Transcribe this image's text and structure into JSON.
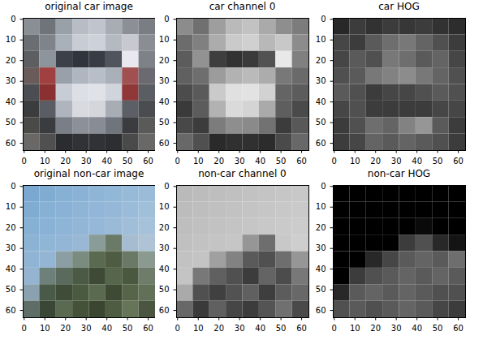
{
  "chart_data": [
    {
      "type": "image",
      "title": "original car image",
      "xlim": [
        -0.5,
        63.5
      ],
      "ylim": [
        63.5,
        -0.5
      ],
      "xticks": [
        0,
        10,
        20,
        30,
        40,
        50,
        60
      ],
      "yticks": [
        0,
        10,
        20,
        30,
        40,
        50,
        60
      ],
      "cells": [
        [
          "#8a8f95",
          "#6e747a",
          "#9aa0a8",
          "#b8bcc4",
          "#c0c4cc",
          "#a8adb5",
          "#8c9096",
          "#7a7e84"
        ],
        [
          "#6a6e72",
          "#7e848a",
          "#a9b0ba",
          "#c8ccd4",
          "#cdd2da",
          "#b5bac2",
          "#c8c8d0",
          "#8a8e94"
        ],
        [
          "#5c5e62",
          "#8e949c",
          "#3c4048",
          "#30343c",
          "#383c44",
          "#50545c",
          "#e8e8ee",
          "#7e8288"
        ],
        [
          "#6a5a5a",
          "#a04040",
          "#9aa0aa",
          "#b0b6c0",
          "#b8bec8",
          "#aab0ba",
          "#a05050",
          "#6a6a70"
        ],
        [
          "#4a4e52",
          "#8a3030",
          "#c8ccd4",
          "#dcdfe6",
          "#e0e2e8",
          "#d0d4dc",
          "#903838",
          "#5a5e62"
        ],
        [
          "#3a3c3e",
          "#5a5e64",
          "#b0b4bc",
          "#d8dae0",
          "#d4d6dc",
          "#a8acb4",
          "#5c6066",
          "#4a4c50"
        ],
        [
          "#4a4a48",
          "#3a3c40",
          "#7a7e86",
          "#8c9098",
          "#888c94",
          "#70747c",
          "#3a3c40",
          "#5a5a58"
        ],
        [
          "#6a6866",
          "#505050",
          "#2a2c30",
          "#303236",
          "#303236",
          "#2c2e32",
          "#4a4a4a",
          "#6a6866"
        ]
      ]
    },
    {
      "type": "image",
      "title": "car channel 0",
      "xlim": [
        -0.5,
        63.5
      ],
      "ylim": [
        63.5,
        -0.5
      ],
      "xticks": [
        0,
        10,
        20,
        30,
        40,
        50,
        60
      ],
      "yticks": [
        0,
        10,
        20,
        30,
        40,
        50,
        60
      ],
      "cells": [
        [
          140,
          112,
          158,
          186,
          194,
          170,
          142,
          124
        ],
        [
          108,
          128,
          172,
          202,
          208,
          184,
          200,
          140
        ],
        [
          92,
          146,
          62,
          50,
          58,
          82,
          232,
          128
        ],
        [
          96,
          110,
          156,
          178,
          186,
          172,
          120,
          106
        ],
        [
          76,
          90,
          202,
          224,
          226,
          210,
          100,
          92
        ],
        [
          58,
          92,
          178,
          218,
          212,
          170,
          94,
          74
        ],
        [
          72,
          60,
          124,
          142,
          138,
          114,
          60,
          88
        ],
        [
          104,
          80,
          42,
          48,
          48,
          44,
          74,
          104
        ]
      ]
    },
    {
      "type": "image",
      "title": "car HOG",
      "xlim": [
        -0.5,
        63.5
      ],
      "ylim": [
        63.5,
        -0.5
      ],
      "xticks": [
        0,
        10,
        20,
        30,
        40,
        50,
        60
      ],
      "yticks": [
        0,
        10,
        20,
        30,
        40,
        50,
        60
      ],
      "cells": [
        [
          40,
          60,
          50,
          60,
          55,
          60,
          50,
          45
        ],
        [
          70,
          60,
          90,
          110,
          120,
          100,
          80,
          60
        ],
        [
          70,
          90,
          80,
          120,
          110,
          90,
          100,
          70
        ],
        [
          80,
          90,
          120,
          130,
          140,
          120,
          100,
          80
        ],
        [
          90,
          80,
          60,
          70,
          70,
          80,
          90,
          80
        ],
        [
          70,
          80,
          60,
          60,
          60,
          60,
          70,
          70
        ],
        [
          60,
          80,
          110,
          100,
          130,
          150,
          90,
          60
        ],
        [
          60,
          70,
          100,
          90,
          100,
          90,
          80,
          60
        ]
      ]
    },
    {
      "type": "image",
      "title": "original non-car image",
      "xlim": [
        -0.5,
        63.5
      ],
      "ylim": [
        63.5,
        -0.5
      ],
      "xticks": [
        0,
        10,
        20,
        30,
        40,
        50,
        60
      ],
      "yticks": [
        0,
        10,
        20,
        30,
        40,
        50,
        60
      ],
      "cells": [
        [
          "#7ba8d0",
          "#80acd2",
          "#86b0d4",
          "#8ab2d6",
          "#8eb4d6",
          "#92b8d8",
          "#96bad8",
          "#9abcd8"
        ],
        [
          "#80acd2",
          "#86b0d4",
          "#8ab2d6",
          "#8eb4d6",
          "#92b6d8",
          "#96b8d8",
          "#9abcda",
          "#a0c0da"
        ],
        [
          "#86b0d4",
          "#8ab2d6",
          "#8eb4d6",
          "#92b6d6",
          "#96b8d8",
          "#9abad8",
          "#a0bed8",
          "#a6c2da"
        ],
        [
          "#8cb2d4",
          "#90b6d6",
          "#94b6d6",
          "#98b8d6",
          "#8a9c98",
          "#6a7a66",
          "#a6bcd0",
          "#aec4d6"
        ],
        [
          "#90b4d4",
          "#94b6d4",
          "#8a9ea4",
          "#7a8c80",
          "#5a6a50",
          "#4e5c44",
          "#6a7866",
          "#8a9a90"
        ],
        [
          "#94b4d2",
          "#6e807a",
          "#5a6a5c",
          "#4a5a44",
          "#3e4a36",
          "#56664c",
          "#4a5840",
          "#6e7c6a"
        ],
        [
          "#8aa2b0",
          "#4a5a48",
          "#3e4c38",
          "#4a5a40",
          "#5a6a50",
          "#3e4a34",
          "#56644a",
          "#627058"
        ],
        [
          "#5e6e66",
          "#3a4636",
          "#5a6a50",
          "#44523a",
          "#3a4630",
          "#4e5c42",
          "#667458",
          "#4a5640"
        ]
      ]
    },
    {
      "type": "image",
      "title": "non-car channel 0",
      "xlim": [
        -0.5,
        63.5
      ],
      "ylim": [
        63.5,
        -0.5
      ],
      "xticks": [
        0,
        10,
        20,
        30,
        40,
        50,
        60
      ],
      "yticks": [
        0,
        10,
        20,
        30,
        40,
        50,
        60
      ],
      "cells": [
        [
          186,
          188,
          190,
          192,
          194,
          196,
          198,
          200
        ],
        [
          188,
          190,
          192,
          194,
          196,
          198,
          200,
          202
        ],
        [
          190,
          192,
          194,
          196,
          198,
          200,
          202,
          204
        ],
        [
          192,
          194,
          196,
          198,
          150,
          110,
          200,
          206
        ],
        [
          194,
          196,
          160,
          130,
          90,
          80,
          110,
          150
        ],
        [
          196,
          120,
          96,
          80,
          60,
          100,
          76,
          120
        ],
        [
          170,
          80,
          64,
          82,
          96,
          62,
          92,
          104
        ],
        [
          104,
          58,
          96,
          70,
          60,
          84,
          112,
          74
        ]
      ]
    },
    {
      "type": "image",
      "title": "non-car HOG",
      "xlim": [
        -0.5,
        63.5
      ],
      "ylim": [
        63.5,
        -0.5
      ],
      "xticks": [
        0,
        10,
        20,
        30,
        40,
        50,
        60
      ],
      "yticks": [
        0,
        10,
        20,
        30,
        40,
        50,
        60
      ],
      "cells": [
        [
          0,
          0,
          0,
          0,
          0,
          0,
          0,
          0
        ],
        [
          0,
          0,
          0,
          0,
          0,
          0,
          0,
          0
        ],
        [
          0,
          0,
          0,
          0,
          0,
          10,
          0,
          0
        ],
        [
          0,
          0,
          0,
          0,
          60,
          80,
          40,
          20
        ],
        [
          0,
          0,
          40,
          70,
          90,
          100,
          90,
          110
        ],
        [
          0,
          60,
          80,
          90,
          100,
          90,
          100,
          90
        ],
        [
          40,
          90,
          100,
          90,
          100,
          90,
          80,
          80
        ],
        [
          80,
          90,
          80,
          90,
          100,
          90,
          70,
          60
        ]
      ]
    }
  ]
}
